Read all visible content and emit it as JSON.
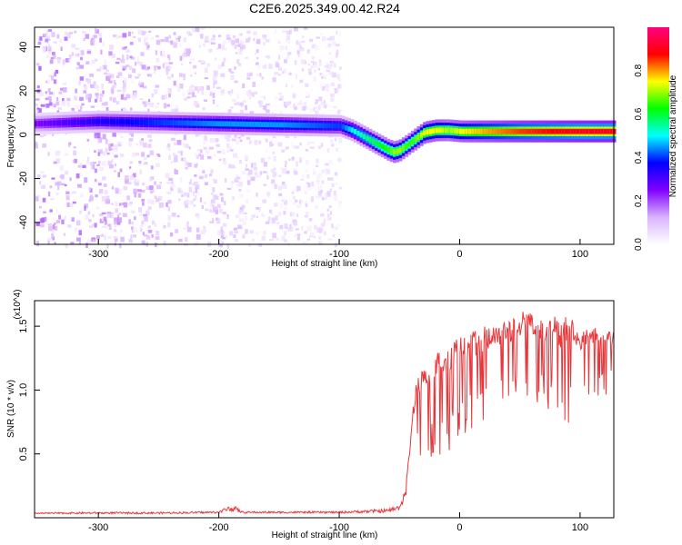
{
  "title": "C2E6.2025.349.00.42.R24",
  "chart_data": [
    {
      "type": "heatmap",
      "xlabel": "Height of straight line (km)",
      "ylabel": "Frequency (Hz)",
      "xlim": [
        -353,
        128
      ],
      "ylim": [
        -50,
        49
      ],
      "xticks": [
        -300,
        -200,
        -100,
        0,
        100
      ],
      "yticks": [
        -40,
        -20,
        0,
        20,
        40
      ],
      "colorbar": {
        "label": "Normalized spectral amplitude",
        "range": [
          0.0,
          1.0
        ],
        "ticks": [
          "0.0",
          "0.2",
          "0.4",
          "0.6",
          "0.8"
        ],
        "colormap": [
          "#ffffff",
          "#d9b3ff",
          "#8000ff",
          "#0000ff",
          "#00ffff",
          "#00ff00",
          "#ffff00",
          "#ff0000",
          "#ff0080"
        ]
      },
      "ridge": {
        "x": [
          -353,
          -300,
          -250,
          -200,
          -150,
          -100,
          -90,
          -80,
          -70,
          -60,
          -55,
          -50,
          -45,
          -40,
          -35,
          -30,
          -20,
          -10,
          0,
          50,
          100,
          128
        ],
        "frequency": [
          5,
          6,
          5.5,
          5,
          4.5,
          4,
          2,
          -1,
          -4,
          -7,
          -8,
          -7,
          -5,
          -3,
          -1,
          1,
          2,
          2,
          1.5,
          1.5,
          1.5,
          1.5
        ],
        "peak_amplitude": [
          0.25,
          0.35,
          0.4,
          0.45,
          0.45,
          0.4,
          0.5,
          0.55,
          0.6,
          0.65,
          0.7,
          0.7,
          0.65,
          0.65,
          0.7,
          0.75,
          0.75,
          0.7,
          0.75,
          0.85,
          0.9,
          0.9
        ]
      },
      "noise_region_x": [
        -353,
        -100
      ]
    },
    {
      "type": "line",
      "xlabel": "Height of straight line (km)",
      "ylabel": "SNR (10 * v/v)",
      "y_multiplier": "(x10^4)",
      "xlim": [
        -353,
        128
      ],
      "ylim": [
        0,
        1.7
      ],
      "xticks": [
        -300,
        -200,
        -100,
        0,
        100
      ],
      "yticks": [
        0.5,
        1.0,
        1.5
      ],
      "ytick_labels": [
        "0.5",
        "1.0",
        "1.5"
      ],
      "series": [
        {
          "name": "SNR",
          "color": "#e8363a",
          "x": [
            -353,
            -300,
            -250,
            -200,
            -190,
            -180,
            -150,
            -100,
            -60,
            -50,
            -45,
            -42,
            -40,
            -38,
            -35,
            -30,
            -25,
            -20,
            -15,
            -10,
            -5,
            0,
            10,
            20,
            30,
            40,
            50,
            55,
            60,
            70,
            80,
            85,
            90,
            95,
            100,
            110,
            120,
            128
          ],
          "envelope_top": [
            0.04,
            0.045,
            0.045,
            0.05,
            0.11,
            0.05,
            0.05,
            0.05,
            0.07,
            0.1,
            0.25,
            0.5,
            0.75,
            0.95,
            1.1,
            1.18,
            1.25,
            1.3,
            1.35,
            1.3,
            1.38,
            1.42,
            1.45,
            1.5,
            1.52,
            1.55,
            1.6,
            1.65,
            1.6,
            1.55,
            1.58,
            1.5,
            1.62,
            1.55,
            1.45,
            1.5,
            1.45,
            1.48
          ],
          "envelope_bottom": [
            0.03,
            0.03,
            0.03,
            0.035,
            0.05,
            0.035,
            0.035,
            0.035,
            0.04,
            0.06,
            0.15,
            0.3,
            0.35,
            0.4,
            0.45,
            0.4,
            0.45,
            0.45,
            0.5,
            0.45,
            0.55,
            0.6,
            0.65,
            0.7,
            0.75,
            0.8,
            0.85,
            0.88,
            0.9,
            0.85,
            0.8,
            0.65,
            0.62,
            0.8,
            0.85,
            0.9,
            0.95,
            1.0
          ]
        }
      ]
    }
  ]
}
